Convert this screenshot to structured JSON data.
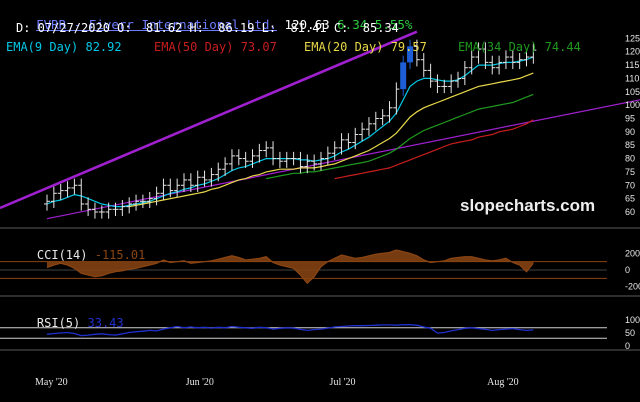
{
  "header": {
    "symbol_name": "FVRR - Fiverr International Ltd.",
    "last": "120.63",
    "change": "6.34",
    "change_pct": "5.55%",
    "ohlc_line": "D: 07/27/2020 O:  81.62 H:  86.19 L:  81.41 C:  85.34"
  },
  "indicators": {
    "ema9_label": "EMA(9 Day) 82.92",
    "ema50_label": "EMA(50 Day) 73.07",
    "ema20_label": "EMA(20 Day) 79.57",
    "ema34_label": "EMA(34 Day) 74.44",
    "cci_label": "CCI(14)",
    "cci_value": "-115.01",
    "rsi_label": "RSI(5)",
    "rsi_value": "33.43"
  },
  "watermark": "slopecharts.com",
  "colors": {
    "background": "#000000",
    "ema9": "#00c8e6",
    "ema20": "#e8d84a",
    "ema34": "#1f9a1f",
    "ema50": "#c81e1e",
    "trendline": "#a020d0",
    "up_bar": "#e6e6e6",
    "highlight_bar": "#1e5fd8",
    "cci_fill": "#8b4513",
    "rsi_line": "#2030d0",
    "change_positive": "#2ecc40"
  },
  "chart_data": [
    {
      "type": "candlestick",
      "title": "FVRR - Fiverr International Ltd.",
      "y_ticks": [
        60,
        65,
        70,
        75,
        80,
        85,
        90,
        95,
        100,
        105,
        110,
        115,
        120,
        125
      ],
      "ylim": [
        57,
        127
      ],
      "x_ticks": [
        "May '20",
        "Jun '20",
        "Jul '20",
        "Aug '20"
      ],
      "x_tick_index": [
        0,
        22,
        43,
        66
      ],
      "n_bars": 72,
      "close": [
        64,
        67,
        68,
        69,
        70,
        63,
        61,
        60,
        60,
        61,
        61,
        62,
        63,
        64,
        64,
        65,
        67,
        70,
        68,
        70,
        72,
        70,
        73,
        72,
        74,
        76,
        78,
        81,
        80,
        79,
        81,
        83,
        84,
        80,
        79,
        80,
        80,
        77,
        79,
        78,
        80,
        82,
        84,
        87,
        86,
        89,
        91,
        93,
        95,
        96,
        99,
        106,
        116,
        122,
        117,
        113,
        109,
        107,
        107,
        109,
        110,
        114,
        118,
        121,
        116,
        114,
        116,
        118,
        116,
        117,
        118,
        120.6
      ],
      "high_offset": 2.5,
      "low_offset": 2.5,
      "highlight_bars": [
        52,
        53
      ],
      "series": [
        {
          "name": "EMA(9 Day)",
          "values": [
            63,
            64,
            64.5,
            65.5,
            66.5,
            66,
            65,
            64,
            63,
            62.5,
            62,
            62,
            62.5,
            63,
            63.5,
            64,
            65,
            66,
            67,
            67.5,
            68.5,
            69,
            70,
            70.5,
            71.5,
            72.5,
            74,
            75.5,
            76.5,
            77,
            78,
            79,
            80,
            80,
            80,
            80,
            80,
            79.5,
            79.5,
            79,
            79.5,
            80,
            81,
            82.5,
            83.5,
            85,
            86.5,
            88,
            90,
            92,
            94,
            97,
            102,
            107,
            109,
            110,
            110,
            109.5,
            109,
            109,
            109.5,
            111,
            113,
            115,
            115,
            115,
            115.5,
            116,
            116,
            116.5,
            117,
            118
          ]
        },
        {
          "name": "EMA(20 Day)",
          "values": [
            null,
            null,
            null,
            null,
            null,
            null,
            null,
            null,
            null,
            null,
            null,
            null,
            62,
            62.5,
            63,
            63.5,
            64,
            64.5,
            65,
            65.5,
            66,
            66.5,
            67,
            67.5,
            68.5,
            69,
            70,
            71,
            72,
            72.5,
            73.5,
            74,
            75,
            75.5,
            76,
            76,
            76,
            76.5,
            76.5,
            76.5,
            77,
            77.5,
            78,
            79,
            80,
            81,
            82,
            83,
            84.5,
            86,
            87.5,
            89.5,
            92.5,
            95.5,
            97.5,
            99,
            100,
            101,
            102,
            103,
            104,
            105,
            106,
            107,
            107.5,
            108,
            108.5,
            109,
            109.5,
            110,
            111,
            112
          ]
        },
        {
          "name": "EMA(34 Day)",
          "values": [
            null,
            null,
            null,
            null,
            null,
            null,
            null,
            null,
            null,
            null,
            null,
            null,
            null,
            null,
            null,
            null,
            null,
            null,
            null,
            null,
            null,
            null,
            null,
            null,
            null,
            null,
            null,
            null,
            null,
            null,
            null,
            null,
            72.5,
            73,
            73.5,
            74,
            74.5,
            74.5,
            75,
            75,
            75.5,
            76,
            76.5,
            77,
            77.5,
            78,
            78.5,
            79,
            80,
            81,
            82,
            83.5,
            85.5,
            87.5,
            89,
            90.5,
            91.5,
            92.5,
            93.5,
            94.5,
            95.5,
            96.5,
            97.5,
            98.5,
            99,
            99.5,
            100,
            100.5,
            101,
            102,
            103,
            104
          ]
        },
        {
          "name": "EMA(50 Day)",
          "values": [
            null,
            null,
            null,
            null,
            null,
            null,
            null,
            null,
            null,
            null,
            null,
            null,
            null,
            null,
            null,
            null,
            null,
            null,
            null,
            null,
            null,
            null,
            null,
            null,
            null,
            null,
            null,
            null,
            null,
            null,
            null,
            null,
            null,
            null,
            null,
            null,
            null,
            null,
            null,
            null,
            null,
            null,
            72.5,
            73,
            73.5,
            74,
            74.5,
            75,
            75.5,
            76,
            76.5,
            77.5,
            78.5,
            79.5,
            80.5,
            81.5,
            82.5,
            83.5,
            84.5,
            85.5,
            86,
            86.5,
            87,
            88,
            88.5,
            89,
            90,
            90.5,
            91,
            92,
            93,
            94.5
          ]
        }
      ],
      "ema_start_index": [
        0,
        12,
        32,
        42
      ]
    },
    {
      "type": "line",
      "title": "CCI(14)",
      "y_ticks": [
        200,
        0,
        -200
      ],
      "ylim": [
        -240,
        240
      ],
      "reference_lines": [
        100,
        -100
      ],
      "values": [
        30,
        60,
        80,
        60,
        20,
        -40,
        -60,
        -80,
        -70,
        -40,
        -20,
        -10,
        10,
        20,
        40,
        60,
        80,
        120,
        90,
        100,
        110,
        80,
        90,
        100,
        110,
        130,
        150,
        170,
        150,
        120,
        130,
        140,
        160,
        90,
        60,
        40,
        20,
        -60,
        -160,
        -80,
        40,
        100,
        140,
        180,
        160,
        140,
        150,
        170,
        190,
        200,
        210,
        240,
        220,
        200,
        170,
        120,
        90,
        100,
        110,
        140,
        150,
        160,
        160,
        140,
        120,
        110,
        120,
        140,
        90,
        60,
        -20,
        80
      ]
    },
    {
      "type": "line",
      "title": "RSI(5)",
      "y_ticks": [
        100,
        50,
        0
      ],
      "ylim": [
        0,
        100
      ],
      "reference_lines": [
        70,
        30
      ],
      "values": [
        45,
        48,
        50,
        52,
        48,
        40,
        42,
        45,
        47,
        44,
        42,
        47,
        52,
        55,
        57,
        60,
        58,
        65,
        70,
        75,
        70,
        73,
        70,
        72,
        69,
        72,
        70,
        75,
        72,
        70,
        68,
        72,
        70,
        65,
        68,
        70,
        69,
        64,
        60,
        63,
        65,
        69,
        73,
        75,
        77,
        78,
        78,
        79,
        80,
        81,
        81,
        80,
        82,
        82,
        80,
        73,
        68,
        50,
        52,
        58,
        63,
        68,
        70,
        67,
        64,
        60,
        63,
        65,
        67,
        63,
        60,
        62
      ]
    }
  ]
}
